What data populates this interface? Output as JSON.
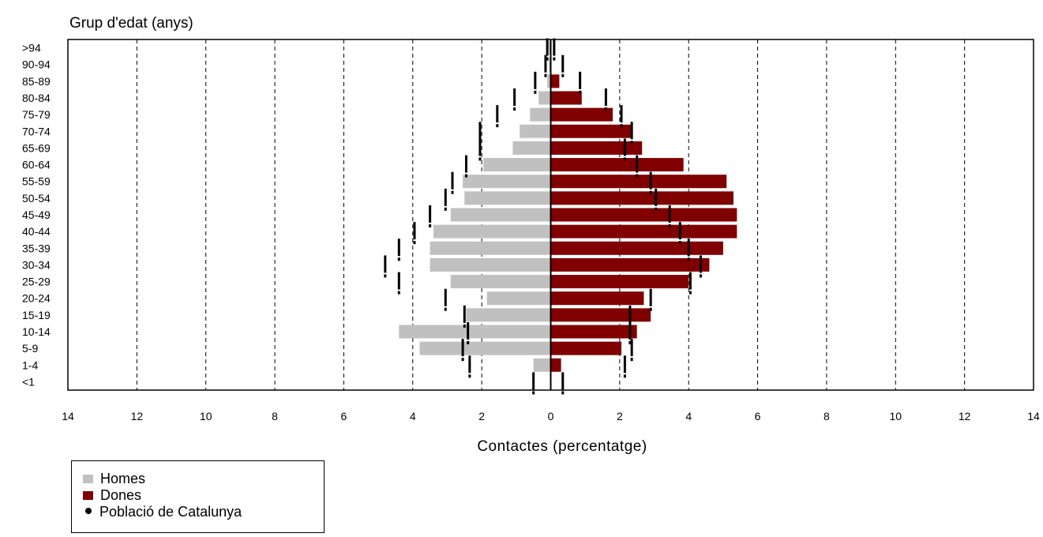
{
  "chart_data": {
    "type": "bar",
    "title": "Grup d'edat (anys)",
    "xlabel": "Contactes (percentatge)",
    "orientation": "horizontal-population-pyramid",
    "xlim": [
      -14,
      14
    ],
    "x_ticks": [
      -14,
      -12,
      -10,
      -8,
      -6,
      -4,
      -2,
      0,
      2,
      4,
      6,
      8,
      10,
      12,
      14
    ],
    "x_tick_labels": [
      "14",
      "12",
      "10",
      "8",
      "6",
      "4",
      "2",
      "0",
      "2",
      "4",
      "6",
      "8",
      "10",
      "12",
      "14"
    ],
    "grid": "vertical dashed",
    "legend_position": "bottom-left",
    "categories": [
      ">94",
      "90-94",
      "85-89",
      "80-84",
      "75-79",
      "70-74",
      "65-69",
      "60-64",
      "55-59",
      "50-54",
      "45-49",
      "40-44",
      "35-39",
      "30-34",
      "25-29",
      "20-24",
      "15-19",
      "10-14",
      "5-9",
      "1-4",
      "<1"
    ],
    "series": [
      {
        "name": "Homes",
        "color": "#c0c0c0",
        "side": "left",
        "values": [
          0.05,
          0.05,
          0.1,
          0.35,
          0.6,
          0.9,
          1.1,
          1.95,
          2.55,
          2.5,
          2.9,
          3.4,
          3.5,
          3.5,
          2.9,
          1.85,
          2.45,
          4.4,
          3.8,
          0.5,
          0.0
        ]
      },
      {
        "name": "Dones",
        "color": "#800000",
        "side": "right",
        "values": [
          0.0,
          0.0,
          0.25,
          0.9,
          1.8,
          2.35,
          2.65,
          3.85,
          5.1,
          5.3,
          5.4,
          5.4,
          5.0,
          4.6,
          4.0,
          2.7,
          2.9,
          2.5,
          2.05,
          0.3,
          0.0
        ]
      },
      {
        "name": "Població de Catalunya",
        "color": "#000000",
        "marker": "tick",
        "left_values": [
          0.1,
          0.15,
          0.45,
          1.05,
          1.55,
          2.05,
          2.05,
          2.45,
          2.85,
          3.05,
          3.5,
          3.95,
          4.4,
          4.8,
          4.4,
          3.05,
          2.5,
          2.4,
          2.55,
          2.35,
          0.5
        ],
        "right_values": [
          0.1,
          0.35,
          0.85,
          1.6,
          2.05,
          2.35,
          2.15,
          2.5,
          2.9,
          3.05,
          3.45,
          3.75,
          4.0,
          4.35,
          4.05,
          2.9,
          2.3,
          2.3,
          2.35,
          2.15,
          0.35
        ]
      }
    ]
  },
  "legend": {
    "items": [
      {
        "label": "Homes",
        "color": "#c0c0c0"
      },
      {
        "label": "Dones",
        "color": "#800000"
      },
      {
        "label": "Població de Catalunya",
        "color": "#000000"
      }
    ]
  }
}
